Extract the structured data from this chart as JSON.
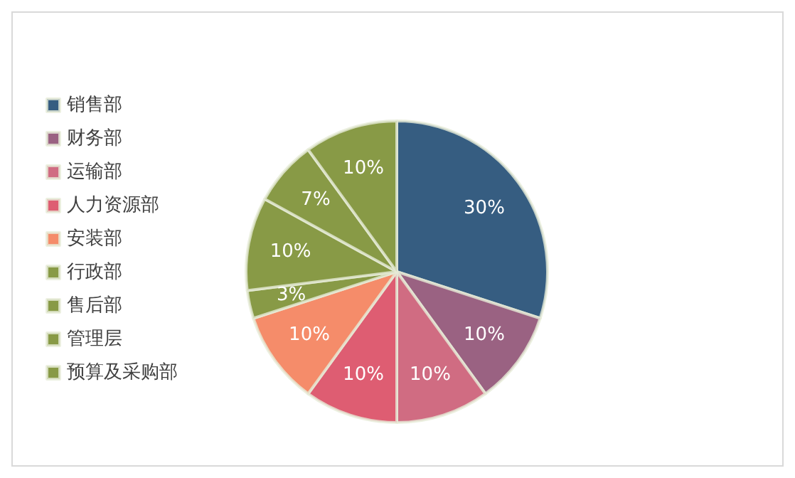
{
  "chart_data": {
    "type": "pie",
    "categories": [
      "销售部",
      "财务部",
      "运输部",
      "人力资源部",
      "安装部",
      "行政部",
      "售后部",
      "管理层",
      "预算及采购部"
    ],
    "values": [
      30,
      10,
      10,
      10,
      10,
      3,
      10,
      7,
      10
    ],
    "colors": [
      "#365d81",
      "#9a6282",
      "#d06c82",
      "#de5d72",
      "#f58c6a",
      "#889a46",
      "#889a46",
      "#889a46",
      "#889a46"
    ],
    "value_labels": [
      "30%",
      "10%",
      "10%",
      "10%",
      "10%",
      "3%",
      "10%",
      "7%",
      "10%"
    ],
    "legend": "left"
  }
}
